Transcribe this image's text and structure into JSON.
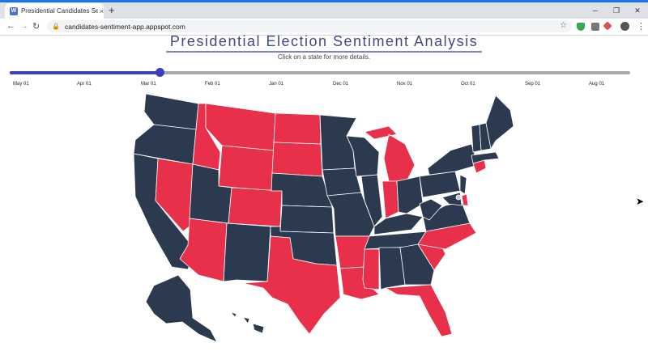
{
  "browser": {
    "tab_title": "Presidential Candidates Sentim",
    "url": "candidates-sentiment-app.appspot.com",
    "new_tab": "+",
    "close": "×",
    "window": {
      "minimize": "─",
      "restore": "❐",
      "close": "✕"
    },
    "nav": {
      "back": "←",
      "forward": "→",
      "reload": "↻"
    },
    "lock_icon": "🔒",
    "bookmark_icon": "☆",
    "menu_icon": "⋮",
    "favicon": "W"
  },
  "page": {
    "title": "Presidential Election Sentiment Analysis",
    "subtitle": "Click on a state for more details."
  },
  "timeline": {
    "labels": [
      "May 01",
      "Apr 01",
      "Mar 01",
      "Feb 01",
      "Jan 01",
      "Dec 01",
      "Nov 01",
      "Oct 01",
      "Sep 01",
      "Aug 01"
    ],
    "selected_index": 2.3,
    "fill_color": "#3b3fb8",
    "track_color": "#a9a9a9"
  },
  "map": {
    "colors": {
      "blue": "#2b3a4f",
      "red": "#e8304a",
      "border": "#ffffff"
    },
    "red_states": [
      "WA-",
      "MT",
      "ID",
      "WY",
      "ND",
      "SD",
      "NV",
      "CO",
      "AZ",
      "TX",
      "OK-",
      "AR",
      "LA",
      "MS",
      "FL",
      "SC",
      "NC",
      "MI",
      "IN",
      "CT",
      "DE"
    ],
    "blue_states": [
      "WA",
      "OR",
      "CA",
      "UT",
      "NM",
      "NE",
      "KS",
      "OK",
      "MN",
      "IA",
      "MO",
      "WI",
      "IL",
      "KY",
      "TN",
      "AL",
      "GA",
      "OH",
      "WV",
      "VA",
      "PA",
      "NY",
      "ME",
      "VT",
      "NH",
      "MA",
      "NJ",
      "MD",
      "AK",
      "HI"
    ]
  }
}
